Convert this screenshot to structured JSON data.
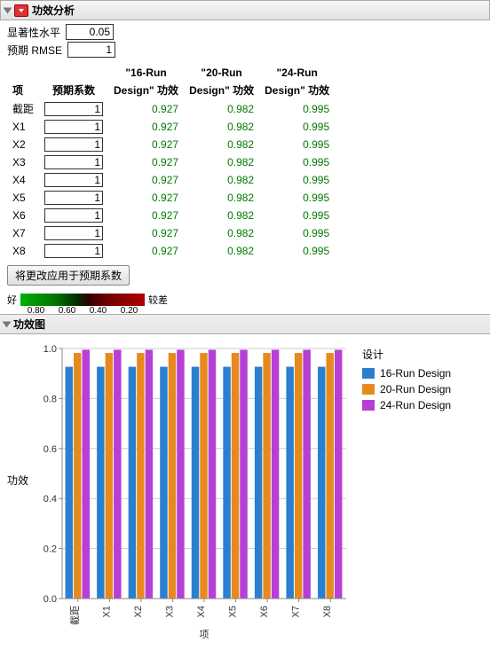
{
  "header": {
    "title": "功效分析"
  },
  "params": {
    "sig_label": "显著性水平",
    "sig_value": "0.05",
    "rmse_label": "预期 RMSE",
    "rmse_value": "1"
  },
  "table": {
    "headers": {
      "term": "项",
      "coef": "预期系数",
      "d16a": "\"16-Run",
      "d16b": "Design\" 功效",
      "d20a": "\"20-Run",
      "d20b": "Design\" 功效",
      "d24a": "\"24-Run",
      "d24b": "Design\" 功效"
    },
    "rows": [
      {
        "term": "截距",
        "coef": "1",
        "p16": "0.927",
        "p20": "0.982",
        "p24": "0.995"
      },
      {
        "term": "X1",
        "coef": "1",
        "p16": "0.927",
        "p20": "0.982",
        "p24": "0.995"
      },
      {
        "term": "X2",
        "coef": "1",
        "p16": "0.927",
        "p20": "0.982",
        "p24": "0.995"
      },
      {
        "term": "X3",
        "coef": "1",
        "p16": "0.927",
        "p20": "0.982",
        "p24": "0.995"
      },
      {
        "term": "X4",
        "coef": "1",
        "p16": "0.927",
        "p20": "0.982",
        "p24": "0.995"
      },
      {
        "term": "X5",
        "coef": "1",
        "p16": "0.927",
        "p20": "0.982",
        "p24": "0.995"
      },
      {
        "term": "X6",
        "coef": "1",
        "p16": "0.927",
        "p20": "0.982",
        "p24": "0.995"
      },
      {
        "term": "X7",
        "coef": "1",
        "p16": "0.927",
        "p20": "0.982",
        "p24": "0.995"
      },
      {
        "term": "X8",
        "coef": "1",
        "p16": "0.927",
        "p20": "0.982",
        "p24": "0.995"
      }
    ]
  },
  "apply_button": "将更改应用于预期系数",
  "strip": {
    "good": "好",
    "bad": "较差",
    "ticks": [
      "0.80",
      "0.60",
      "0.40",
      "0.20"
    ]
  },
  "chart_header": "功效图",
  "chart": {
    "type": "bar",
    "ylabel": "功效",
    "xlabel": "项",
    "ylim": [
      0.0,
      1.0
    ],
    "ytick_step": 0.2,
    "yticks": [
      "0.0",
      "0.2",
      "0.4",
      "0.6",
      "0.8",
      "1.0"
    ],
    "categories": [
      "截距",
      "X1",
      "X2",
      "X3",
      "X4",
      "X5",
      "X6",
      "X7",
      "X8"
    ],
    "series": [
      {
        "name": "16-Run Design",
        "color": "#2b7fd0",
        "values": [
          0.927,
          0.927,
          0.927,
          0.927,
          0.927,
          0.927,
          0.927,
          0.927,
          0.927
        ]
      },
      {
        "name": "20-Run Design",
        "color": "#e78a1e",
        "values": [
          0.982,
          0.982,
          0.982,
          0.982,
          0.982,
          0.982,
          0.982,
          0.982,
          0.982
        ]
      },
      {
        "name": "24-Run Design",
        "color": "#b73fd6",
        "values": [
          0.995,
          0.995,
          0.995,
          0.995,
          0.995,
          0.995,
          0.995,
          0.995,
          0.995
        ]
      }
    ],
    "legend_title": "设计",
    "background_color": "#ffffff",
    "grid_color": "#cccccc",
    "axis_color": "#888888",
    "bar_group_width": 0.8,
    "label_fontsize": 11
  }
}
